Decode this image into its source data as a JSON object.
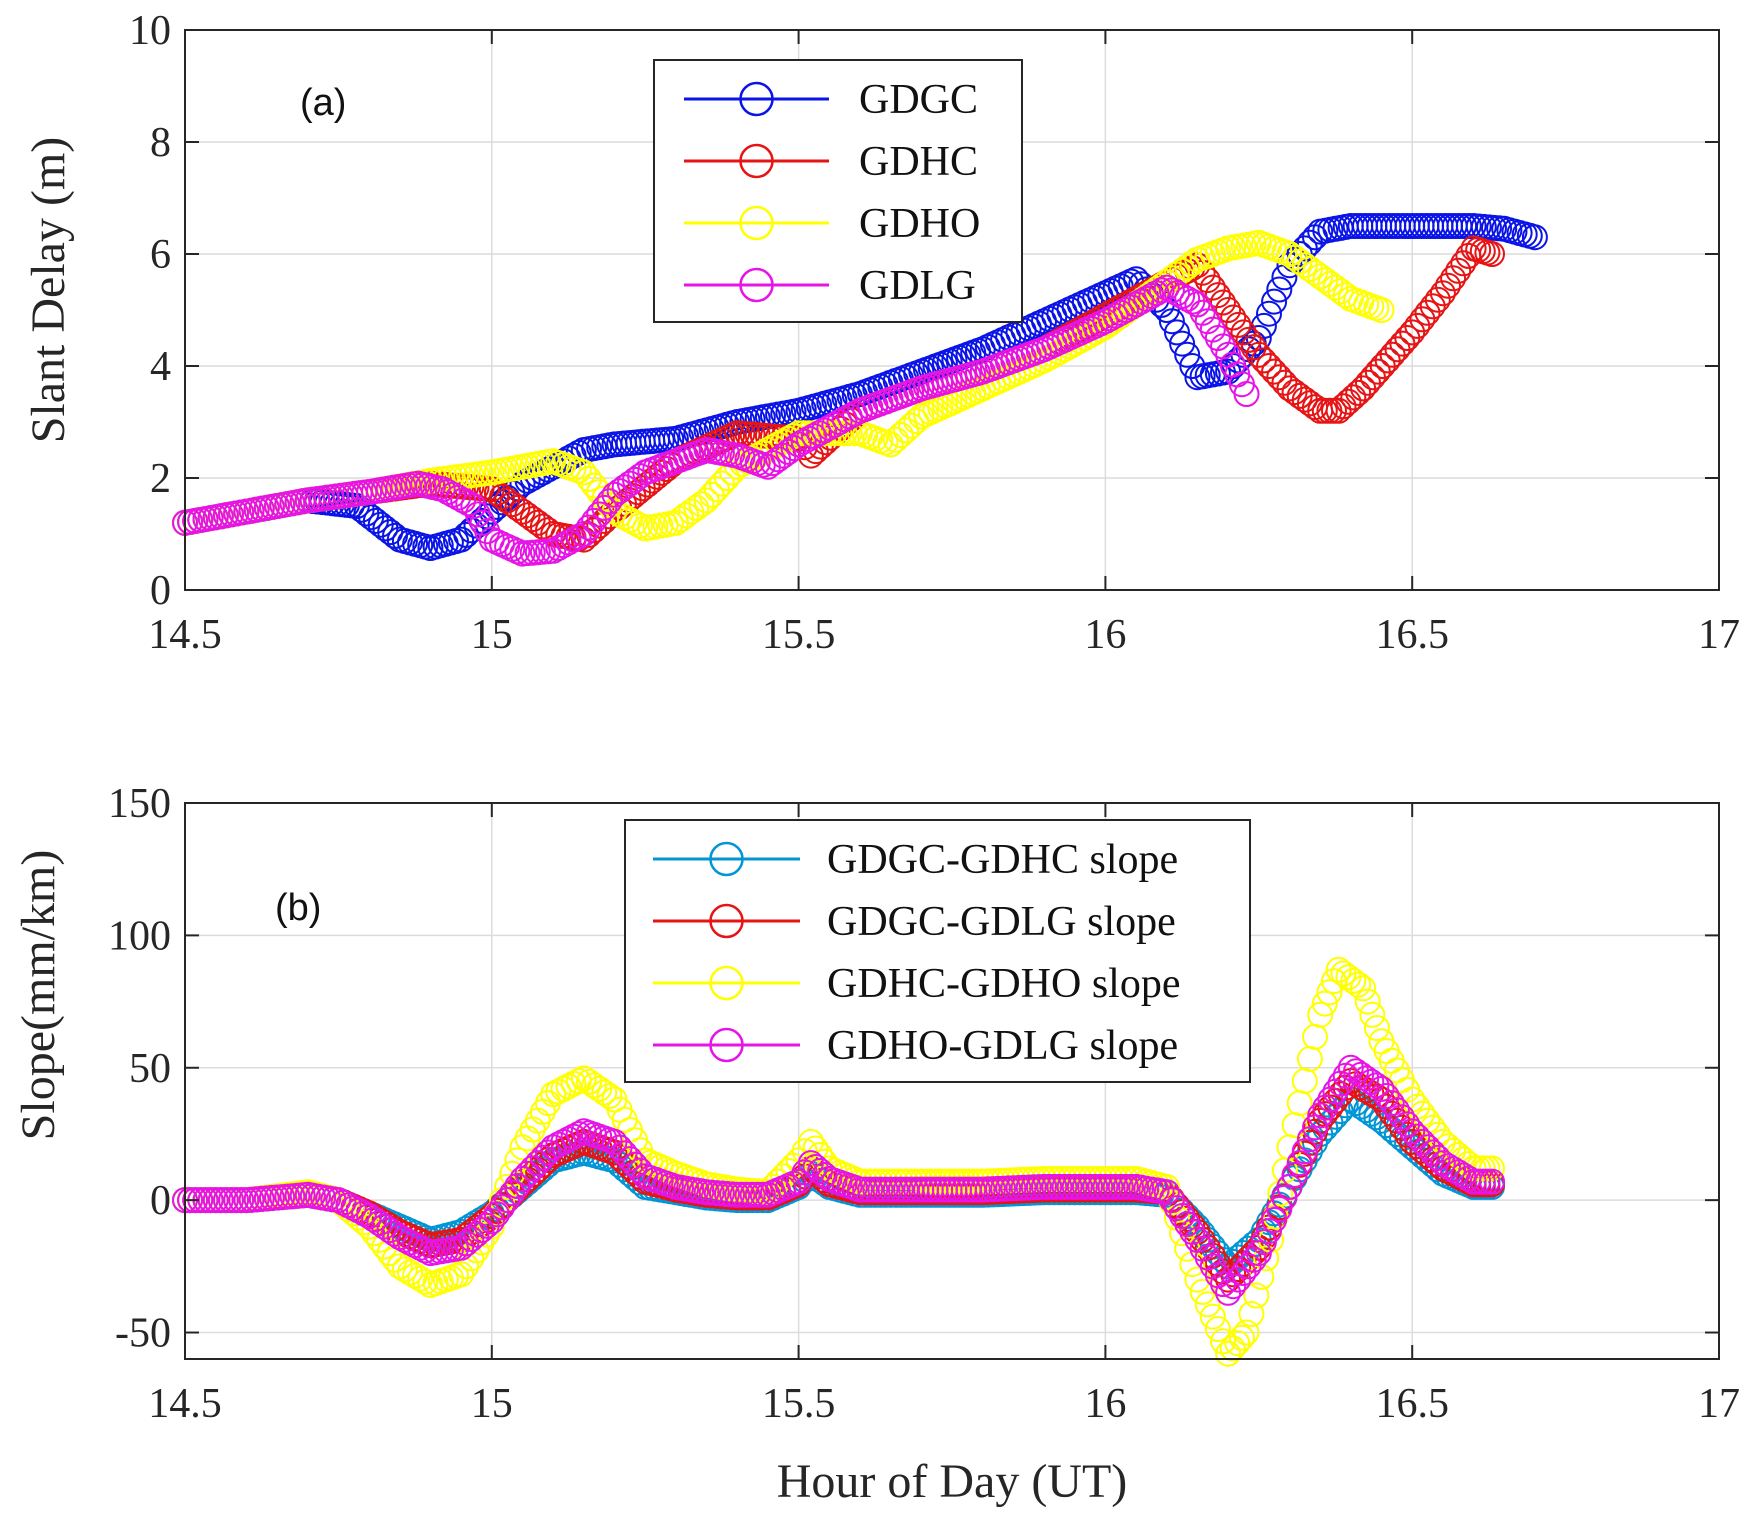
{
  "chart_data": [
    {
      "type": "scatter",
      "panel_label": "(a)",
      "title": "",
      "xlabel": "",
      "ylabel": "Slant Delay (m)",
      "xlim": [
        14.5,
        17
      ],
      "ylim": [
        0,
        10
      ],
      "xticks": [
        14.5,
        15,
        15.5,
        16,
        16.5,
        17
      ],
      "xtick_labels": [
        "14.5",
        "15",
        "15.5",
        "16",
        "16.5",
        "17"
      ],
      "yticks": [
        0,
        2,
        4,
        6,
        8,
        10
      ],
      "ytick_labels": [
        "0",
        "2",
        "4",
        "6",
        "8",
        "10"
      ],
      "grid": true,
      "legend_position": "top-center",
      "marker": "open-circle",
      "series": [
        {
          "name": "GDGC",
          "color": "#0a14e6",
          "x": [
            14.5,
            14.6,
            14.7,
            14.78,
            14.85,
            14.9,
            14.95,
            15.0,
            15.05,
            15.1,
            15.15,
            15.2,
            15.3,
            15.4,
            15.5,
            15.6,
            15.7,
            15.8,
            15.9,
            16.0,
            16.05,
            16.1,
            16.15,
            16.2,
            16.25,
            16.3,
            16.35,
            16.4,
            16.5,
            16.6,
            16.65,
            16.7
          ],
          "y": [
            1.2,
            1.4,
            1.6,
            1.5,
            0.9,
            0.75,
            0.9,
            1.4,
            1.9,
            2.2,
            2.5,
            2.6,
            2.7,
            3.0,
            3.2,
            3.5,
            3.9,
            4.3,
            4.8,
            5.3,
            5.55,
            5.0,
            3.8,
            3.9,
            4.5,
            5.8,
            6.4,
            6.5,
            6.5,
            6.5,
            6.45,
            6.3
          ]
        },
        {
          "name": "GDHC",
          "color": "#e61414",
          "x": [
            14.5,
            14.6,
            14.7,
            14.8,
            14.9,
            15.0,
            15.05,
            15.1,
            15.15,
            15.2,
            15.3,
            15.4,
            15.5,
            15.52,
            15.6,
            15.7,
            15.8,
            15.9,
            16.0,
            16.1,
            16.15,
            16.2,
            16.25,
            16.3,
            16.35,
            16.38,
            16.42,
            16.5,
            16.55,
            16.6,
            16.63
          ],
          "y": [
            1.2,
            1.4,
            1.6,
            1.75,
            1.9,
            1.8,
            1.4,
            1.0,
            0.9,
            1.4,
            2.3,
            2.8,
            2.7,
            2.4,
            3.2,
            3.6,
            3.9,
            4.3,
            4.9,
            5.5,
            5.8,
            5.0,
            4.2,
            3.6,
            3.2,
            3.2,
            3.6,
            4.6,
            5.3,
            6.1,
            6.0
          ]
        },
        {
          "name": "GDHO",
          "color": "#ffff00",
          "x": [
            14.5,
            14.6,
            14.7,
            14.8,
            14.9,
            15.0,
            15.05,
            15.1,
            15.15,
            15.2,
            15.25,
            15.3,
            15.35,
            15.4,
            15.5,
            15.6,
            15.65,
            15.7,
            15.8,
            15.9,
            16.0,
            16.1,
            16.15,
            16.2,
            16.25,
            16.3,
            16.35,
            16.4,
            16.45
          ],
          "y": [
            1.2,
            1.4,
            1.6,
            1.75,
            1.95,
            2.1,
            2.2,
            2.3,
            2.1,
            1.4,
            1.1,
            1.2,
            1.6,
            2.2,
            2.8,
            2.8,
            2.6,
            3.1,
            3.6,
            4.1,
            4.7,
            5.5,
            5.9,
            6.1,
            6.2,
            6.0,
            5.6,
            5.2,
            5.0
          ]
        },
        {
          "name": "GDLG",
          "color": "#e614e6",
          "x": [
            14.5,
            14.6,
            14.7,
            14.8,
            14.88,
            14.92,
            14.97,
            15.0,
            15.05,
            15.1,
            15.15,
            15.2,
            15.25,
            15.3,
            15.35,
            15.4,
            15.45,
            15.5,
            15.6,
            15.7,
            15.8,
            15.9,
            16.0,
            16.05,
            16.1,
            16.15,
            16.2,
            16.23
          ],
          "y": [
            1.2,
            1.4,
            1.6,
            1.75,
            1.9,
            1.8,
            1.5,
            0.9,
            0.65,
            0.7,
            1.0,
            1.7,
            2.1,
            2.3,
            2.5,
            2.4,
            2.2,
            2.6,
            3.2,
            3.6,
            3.9,
            4.3,
            4.8,
            5.1,
            5.4,
            5.1,
            4.2,
            3.5
          ]
        }
      ]
    },
    {
      "type": "scatter",
      "panel_label": "(b)",
      "title": "",
      "xlabel": "Hour of Day (UT)",
      "ylabel": "Slope(mm/km)",
      "xlim": [
        14.5,
        17
      ],
      "ylim": [
        -60,
        150
      ],
      "xticks": [
        14.5,
        15,
        15.5,
        16,
        16.5,
        17
      ],
      "xtick_labels": [
        "14.5",
        "15",
        "15.5",
        "16",
        "16.5",
        "17"
      ],
      "yticks": [
        -50,
        0,
        50,
        100,
        150
      ],
      "ytick_labels": [
        "-50",
        "0",
        "50",
        "100",
        "150"
      ],
      "grid": true,
      "legend_position": "top-right",
      "marker": "open-circle",
      "series": [
        {
          "name": "GDGC-GDHC slope",
          "color": "#0096d6",
          "x": [
            14.5,
            14.6,
            14.7,
            14.75,
            14.8,
            14.85,
            14.9,
            14.95,
            15.0,
            15.05,
            15.1,
            15.15,
            15.2,
            15.25,
            15.3,
            15.35,
            15.4,
            15.45,
            15.5,
            15.52,
            15.55,
            15.6,
            15.7,
            15.8,
            15.9,
            16.0,
            16.05,
            16.1,
            16.15,
            16.2,
            16.25,
            16.3,
            16.35,
            16.4,
            16.45,
            16.5,
            16.55,
            16.6,
            16.63
          ],
          "y": [
            0,
            0,
            2,
            0,
            -5,
            -10,
            -15,
            -12,
            -5,
            5,
            15,
            18,
            15,
            5,
            3,
            1,
            0,
            0,
            5,
            10,
            5,
            2,
            2,
            2,
            3,
            3,
            3,
            2,
            -10,
            -25,
            -15,
            5,
            25,
            38,
            30,
            20,
            10,
            5,
            5
          ]
        },
        {
          "name": "GDGC-GDLG slope",
          "color": "#e61414",
          "x": [
            14.5,
            14.6,
            14.7,
            14.75,
            14.8,
            14.85,
            14.9,
            14.95,
            15.0,
            15.05,
            15.1,
            15.15,
            15.2,
            15.25,
            15.3,
            15.35,
            15.4,
            15.45,
            15.5,
            15.52,
            15.55,
            15.6,
            15.7,
            15.8,
            15.9,
            16.0,
            16.05,
            16.1,
            16.15,
            16.2,
            16.25,
            16.3,
            16.35,
            16.4,
            16.45,
            16.5,
            16.55,
            16.6,
            16.63
          ],
          "y": [
            0,
            0,
            2,
            0,
            -5,
            -12,
            -17,
            -15,
            -6,
            6,
            17,
            22,
            18,
            7,
            4,
            2,
            1,
            1,
            6,
            12,
            6,
            3,
            3,
            3,
            4,
            4,
            4,
            3,
            -12,
            -30,
            -18,
            5,
            30,
            45,
            38,
            22,
            12,
            6,
            6
          ]
        },
        {
          "name": "GDHC-GDHO slope",
          "color": "#ffff00",
          "x": [
            14.5,
            14.6,
            14.7,
            14.75,
            14.8,
            14.85,
            14.9,
            14.95,
            15.0,
            15.05,
            15.1,
            15.15,
            15.2,
            15.25,
            15.3,
            15.35,
            15.4,
            15.45,
            15.5,
            15.52,
            15.55,
            15.6,
            15.7,
            15.8,
            15.9,
            16.0,
            16.05,
            16.1,
            16.15,
            16.2,
            16.23,
            16.27,
            16.3,
            16.35,
            16.38,
            16.42,
            16.45,
            16.5,
            16.55,
            16.6,
            16.63
          ],
          "y": [
            0,
            0,
            3,
            0,
            -10,
            -25,
            -32,
            -28,
            -10,
            20,
            40,
            46,
            38,
            15,
            10,
            6,
            4,
            3,
            15,
            22,
            12,
            7,
            7,
            7,
            8,
            8,
            8,
            5,
            -30,
            -58,
            -50,
            -15,
            20,
            70,
            87,
            80,
            60,
            38,
            22,
            12,
            12
          ]
        },
        {
          "name": "GDHO-GDLG slope",
          "color": "#e614e6",
          "x": [
            14.5,
            14.6,
            14.7,
            14.75,
            14.8,
            14.85,
            14.9,
            14.95,
            15.0,
            15.05,
            15.1,
            15.15,
            15.2,
            15.25,
            15.3,
            15.35,
            15.4,
            15.45,
            15.5,
            15.52,
            15.55,
            15.6,
            15.7,
            15.8,
            15.9,
            16.0,
            16.05,
            16.1,
            16.15,
            16.2,
            16.25,
            16.3,
            16.35,
            16.4,
            16.45,
            16.5,
            16.55,
            16.6,
            16.63
          ],
          "y": [
            0,
            0,
            2,
            0,
            -6,
            -14,
            -20,
            -18,
            -8,
            8,
            20,
            26,
            22,
            9,
            5,
            3,
            2,
            2,
            7,
            14,
            8,
            4,
            4,
            4,
            5,
            5,
            5,
            3,
            -15,
            -35,
            -20,
            5,
            32,
            50,
            42,
            26,
            14,
            7,
            7
          ]
        }
      ]
    }
  ]
}
